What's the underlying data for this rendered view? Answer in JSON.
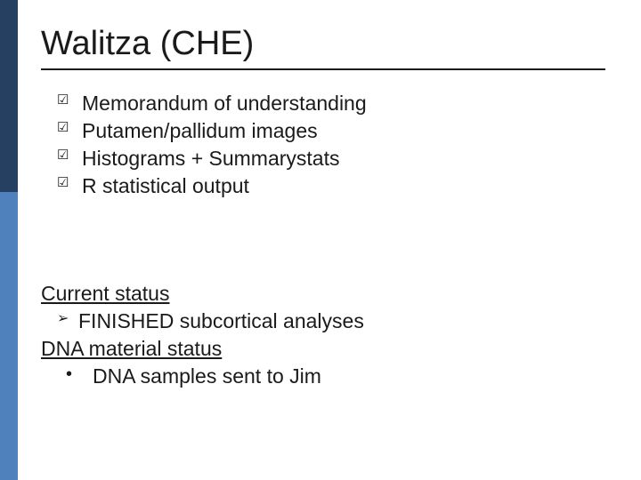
{
  "colors": {
    "accent_top": "#254061",
    "accent_bottom": "#4f81bd",
    "text": "#1a1a1a",
    "background": "#ffffff"
  },
  "title": "Walitza (CHE)",
  "checklist": [
    "Memorandum of understanding",
    "Putamen/pallidum images",
    "Histograms + Summarystats",
    "R statistical output"
  ],
  "status": {
    "heading1": "Current status",
    "item1": "FINISHED subcortical analyses",
    "heading2": "DNA material status",
    "item2": "DNA samples sent to Jim"
  }
}
